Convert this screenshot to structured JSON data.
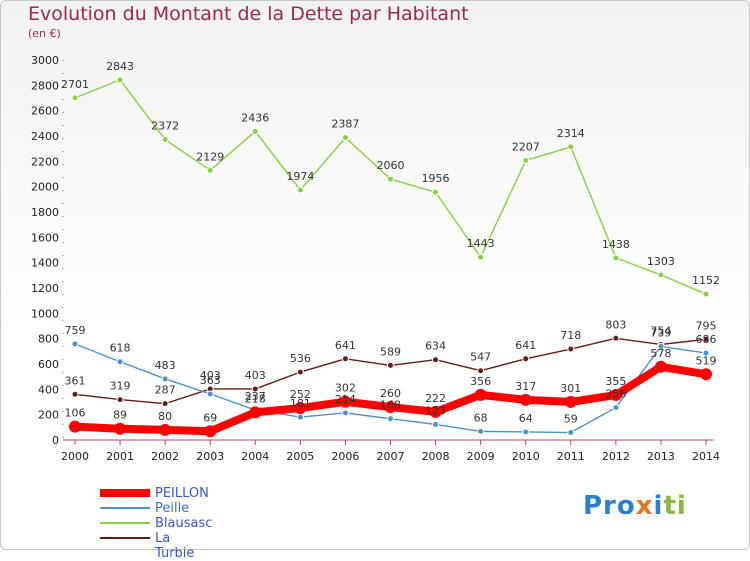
{
  "chart_data": {
    "type": "line",
    "title": "Evolution du Montant de la Dette par Habitant",
    "subtitle": "(en €)",
    "x": [
      "2000",
      "2001",
      "2002",
      "2003",
      "2004",
      "2005",
      "2006",
      "2007",
      "2008",
      "2009",
      "2010",
      "2011",
      "2012",
      "2013",
      "2014"
    ],
    "ylim": [
      0,
      3000
    ],
    "yticks": [
      0,
      200,
      400,
      600,
      800,
      1000,
      1200,
      1400,
      1600,
      1800,
      2000,
      2200,
      2400,
      2600,
      2800,
      3000
    ],
    "grid": false,
    "legend_position": "bottom-left",
    "series": [
      {
        "name": "PEILLON",
        "color": "#ff0000",
        "values": [
          106,
          89,
          80,
          69,
          218,
          252,
          302,
          260,
          222,
          356,
          317,
          301,
          355,
          578,
          519
        ]
      },
      {
        "name": "Peille",
        "color": "#4e8fcf",
        "values": [
          759,
          618,
          483,
          363,
          237,
          181,
          214,
          168,
          123,
          68,
          64,
          59,
          256,
          739,
          686
        ]
      },
      {
        "name": "Blausasc",
        "color": "#88d040",
        "values": [
          2701,
          2843,
          2372,
          2129,
          2436,
          1974,
          2387,
          2060,
          1956,
          1443,
          2207,
          2314,
          1438,
          1303,
          1152
        ]
      },
      {
        "name": "La Turbie",
        "color": "#6a1a1a",
        "values": [
          361,
          319,
          287,
          403,
          403,
          536,
          641,
          589,
          634,
          547,
          641,
          718,
          803,
          754,
          795
        ]
      }
    ]
  },
  "logo": {
    "p1": "Pro",
    "p2": "x",
    "p3": "i",
    "p4": "ti"
  }
}
